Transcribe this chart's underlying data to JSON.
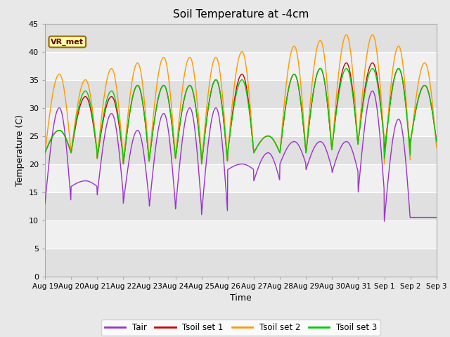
{
  "title": "Soil Temperature at -4cm",
  "xlabel": "Time",
  "ylabel": "Temperature (C)",
  "ylim": [
    0,
    45
  ],
  "yticks": [
    0,
    5,
    10,
    15,
    20,
    25,
    30,
    35,
    40,
    45
  ],
  "colors": {
    "Tair": "#9933CC",
    "Tsoil1": "#CC0000",
    "Tsoil2": "#FF9900",
    "Tsoil3": "#00CC00"
  },
  "x_tick_labels": [
    "Aug 19",
    "Aug 20",
    "Aug 21",
    "Aug 22",
    "Aug 23",
    "Aug 24",
    "Aug 25",
    "Aug 26",
    "Aug 27",
    "Aug 28",
    "Aug 29",
    "Aug 30",
    "Aug 31",
    "Sep 1",
    "Sep 2",
    "Sep 3"
  ],
  "band_colors": [
    "#E8E8E8",
    "#F5F5F5"
  ],
  "tair_nights": [
    13,
    16,
    14.5,
    13,
    12.5,
    12,
    11,
    19,
    17,
    20,
    19,
    18.5,
    15,
    9.8,
    10.5
  ],
  "tair_peaks": [
    30,
    17,
    29,
    26,
    29,
    30,
    30,
    20,
    22,
    24,
    24,
    24,
    33,
    28,
    10.5
  ],
  "tsoil1_nights": [
    22,
    22,
    21,
    20,
    21,
    21,
    20,
    22,
    22,
    22,
    22,
    23,
    24,
    22,
    24
  ],
  "tsoil1_peaks": [
    26,
    32,
    32,
    34,
    34,
    34,
    35,
    36,
    25,
    36,
    37,
    38,
    38,
    37,
    34
  ],
  "tsoil2_nights": [
    22,
    22,
    21,
    20,
    21,
    21,
    20,
    22,
    22,
    22,
    22,
    23,
    24,
    20,
    23
  ],
  "tsoil2_peaks": [
    36,
    35,
    37,
    38,
    39,
    39,
    39,
    40,
    25,
    41,
    42,
    43,
    43,
    41,
    38
  ],
  "tsoil3_nights": [
    22,
    22,
    21,
    20,
    21,
    21,
    20,
    22,
    22,
    22,
    22,
    23,
    24,
    21,
    24
  ],
  "tsoil3_peaks": [
    26,
    33,
    33,
    34,
    34,
    34,
    35,
    35,
    25,
    36,
    37,
    37,
    37,
    37,
    34
  ],
  "n_days": 15,
  "phase": 0.55
}
